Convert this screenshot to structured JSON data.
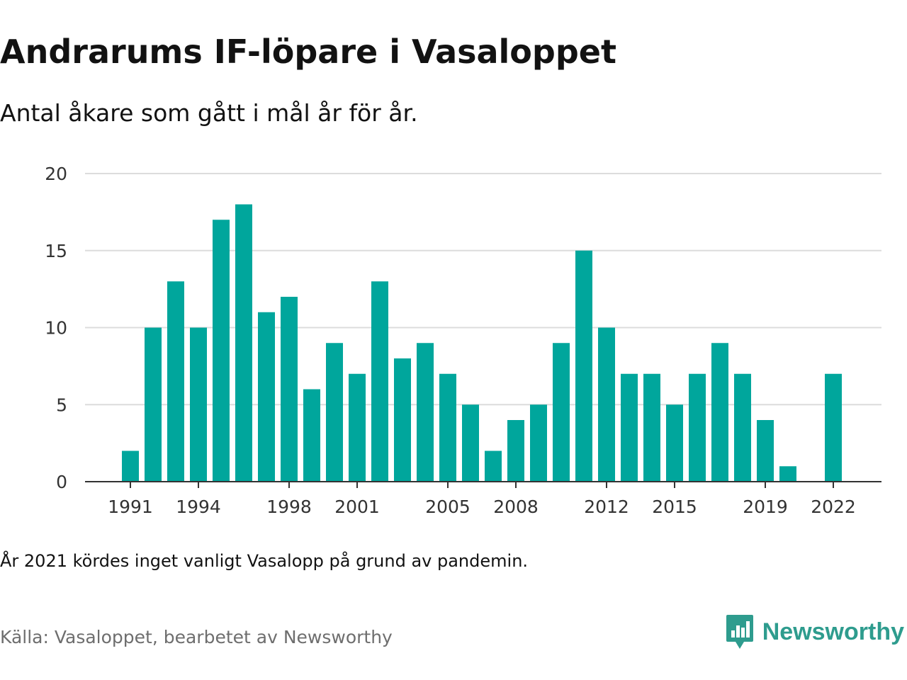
{
  "title": "Andrarums IF-löpare i Vasaloppet",
  "subtitle": "Antal åkare som gått i mål år för år.",
  "note": "År 2021 kördes inget vanligt Vasalopp på grund av pandemin.",
  "source": "Källa: Vasaloppet, bearbetet av Newsworthy",
  "brand": {
    "name": "Newsworthy",
    "color": "#2e9c8e",
    "icon": "newsworthy-logo-icon"
  },
  "colors": {
    "bar": "#00a69c",
    "grid": "#dcdcdc",
    "axis": "#333333"
  },
  "chart_data": {
    "type": "bar",
    "categories": [
      1991,
      1992,
      1993,
      1994,
      1995,
      1996,
      1997,
      1998,
      1999,
      2000,
      2001,
      2002,
      2003,
      2004,
      2005,
      2006,
      2007,
      2008,
      2009,
      2010,
      2011,
      2012,
      2013,
      2014,
      2015,
      2016,
      2017,
      2018,
      2019,
      2020,
      2021,
      2022
    ],
    "values": [
      2,
      10,
      13,
      10,
      17,
      18,
      11,
      12,
      6,
      9,
      7,
      13,
      8,
      9,
      7,
      5,
      2,
      4,
      5,
      9,
      15,
      10,
      7,
      7,
      5,
      7,
      9,
      7,
      4,
      1,
      null,
      7
    ],
    "xticks": [
      "1991",
      "1994",
      "1998",
      "2001",
      "2005",
      "2008",
      "2012",
      "2015",
      "2019",
      "2022"
    ],
    "yticks": [
      0,
      5,
      10,
      15,
      20
    ],
    "ylim": [
      0,
      20
    ],
    "grid": true
  }
}
